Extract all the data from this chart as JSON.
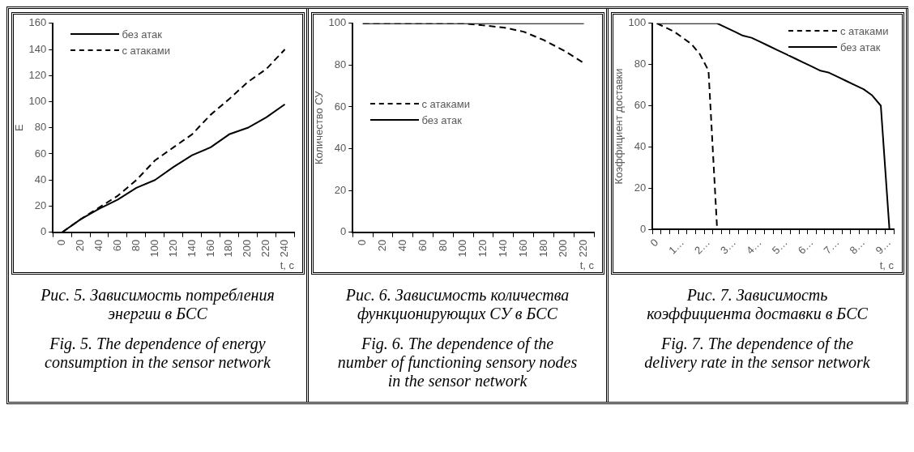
{
  "chart_data": [
    {
      "type": "line",
      "categories": [
        "0",
        "20",
        "40",
        "60",
        "80",
        "100",
        "120",
        "140",
        "160",
        "180",
        "200",
        "220",
        "240"
      ],
      "series": [
        {
          "name": "без атак",
          "color": "#000000",
          "line_style": "solid",
          "values": [
            0,
            10,
            18,
            25,
            34,
            40,
            50,
            59,
            65,
            75,
            80,
            88,
            98
          ]
        },
        {
          "name": "с атаками",
          "color": "#000000",
          "line_style": "dashed",
          "values": [
            0,
            10,
            19,
            28,
            40,
            55,
            65,
            75,
            90,
            102,
            115,
            125,
            140
          ]
        }
      ],
      "xlabel": "t, с",
      "ylabel": "E",
      "ylim": [
        0,
        160
      ],
      "yticks": [
        0,
        20,
        40,
        60,
        80,
        100,
        120,
        140,
        160
      ],
      "legend": "top left",
      "annotations": [
        "Рис. 5. Зависимость потребления энергии в БСС",
        "Fig. 5. The dependence of energy consumption in the sensor network"
      ]
    },
    {
      "type": "line",
      "categories": [
        "0",
        "20",
        "40",
        "60",
        "80",
        "100",
        "120",
        "140",
        "160",
        "180",
        "200",
        "220"
      ],
      "series": [
        {
          "name": "с атаками",
          "color": "#000000",
          "line_style": "dashed",
          "values": [
            100,
            100,
            100,
            100,
            100,
            100,
            99,
            98,
            96,
            92,
            87,
            81
          ]
        },
        {
          "name": "без атак",
          "color": "#000000",
          "line_style": "solid",
          "values": [
            100,
            100,
            100,
            100,
            100,
            100,
            100,
            100,
            100,
            100,
            100,
            100
          ]
        }
      ],
      "xlabel": "t, с",
      "ylabel": "Количество СУ",
      "ylim": [
        0,
        100
      ],
      "yticks": [
        0,
        20,
        40,
        60,
        80,
        100
      ],
      "legend": "left",
      "annotations": [
        "Рис. 6. Зависимость количества функционирующих СУ в БСС",
        "Fig. 6. The dependence of the number of functioning sensory nodes in the sensor network"
      ]
    },
    {
      "type": "line",
      "categories": [
        "0",
        null,
        null,
        "1…",
        null,
        null,
        "2…",
        null,
        null,
        "3…",
        null,
        null,
        "4…",
        null,
        null,
        "5…",
        null,
        null,
        "6…",
        null,
        null,
        "7…",
        null,
        null,
        "8…",
        null,
        null,
        "9…"
      ],
      "series": [
        {
          "name": "с атаками",
          "color": "#000000",
          "line_style": "dashed",
          "values": [
            100,
            98,
            96,
            93,
            90,
            85,
            77,
            0,
            null,
            null,
            null,
            null,
            null,
            null,
            null,
            null,
            null,
            null,
            null,
            null,
            null,
            null,
            null,
            null,
            null,
            null,
            null,
            null
          ]
        },
        {
          "name": "без атак",
          "color": "#000000",
          "line_style": "solid",
          "values": [
            100,
            100,
            100,
            100,
            100,
            100,
            100,
            100,
            98,
            96,
            94,
            93,
            91,
            89,
            87,
            85,
            83,
            81,
            79,
            77,
            76,
            74,
            72,
            70,
            68,
            65,
            60,
            0
          ]
        }
      ],
      "xlabel": "t, с",
      "ylabel": "Коэффициент доставки",
      "ylim": [
        0,
        100
      ],
      "yticks": [
        0,
        20,
        40,
        60,
        80,
        100
      ],
      "legend": "top right",
      "annotations": [
        "Рис. 7. Зависимость коэффициента доставки в БСС",
        "Fig. 7. The dependence of the delivery rate in the sensor network"
      ]
    }
  ]
}
